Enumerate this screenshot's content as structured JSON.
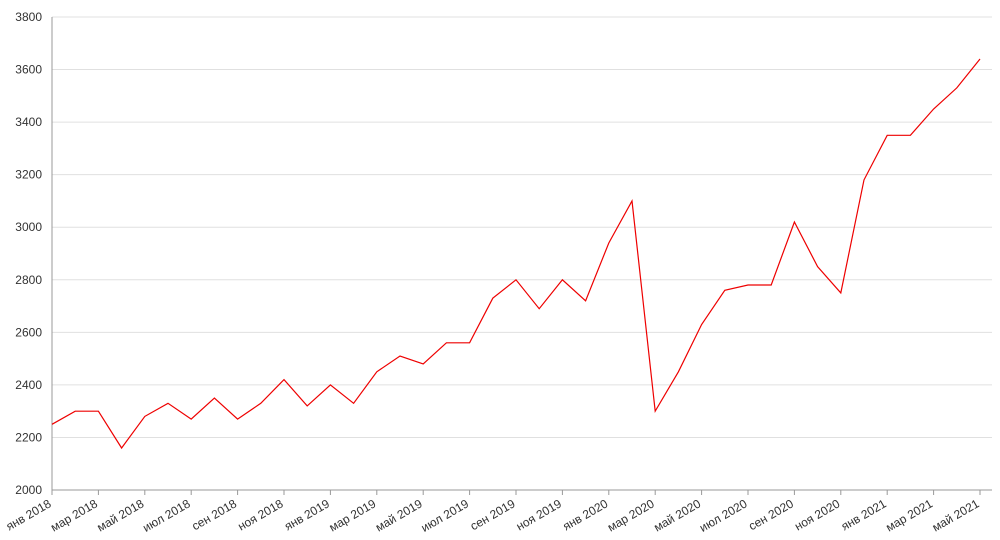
{
  "chart_data": {
    "type": "line",
    "x": [
      "2018-01",
      "2018-02",
      "2018-03",
      "2018-04",
      "2018-05",
      "2018-06",
      "2018-07",
      "2018-08",
      "2018-09",
      "2018-10",
      "2018-11",
      "2018-12",
      "2019-01",
      "2019-02",
      "2019-03",
      "2019-04",
      "2019-05",
      "2019-06",
      "2019-07",
      "2019-08",
      "2019-09",
      "2019-10",
      "2019-11",
      "2019-12",
      "2020-01",
      "2020-02",
      "2020-03",
      "2020-04",
      "2020-05",
      "2020-06",
      "2020-07",
      "2020-08",
      "2020-09",
      "2020-10",
      "2020-11",
      "2020-12",
      "2021-01",
      "2021-02",
      "2021-03",
      "2021-04",
      "2021-05"
    ],
    "series": [
      {
        "color": "#ee0000",
        "values": [
          2250,
          2300,
          2300,
          2160,
          2280,
          2330,
          2270,
          2350,
          2270,
          2330,
          2420,
          2320,
          2400,
          2330,
          2450,
          2510,
          2480,
          2560,
          2560,
          2730,
          2800,
          2690,
          2800,
          2720,
          2940,
          3100,
          2300,
          2450,
          2630,
          2760,
          2780,
          2780,
          3020,
          2850,
          2750,
          3180,
          3350,
          3350,
          3450,
          3530,
          3640
        ]
      }
    ],
    "ylim": [
      2000,
      3800
    ],
    "yticks": [
      2000,
      2200,
      2400,
      2600,
      2800,
      3000,
      3200,
      3400,
      3600,
      3800
    ],
    "xticks": [
      {
        "value": "2018-01",
        "label": "янв 2018"
      },
      {
        "value": "2018-03",
        "label": "мар 2018"
      },
      {
        "value": "2018-05",
        "label": "май 2018"
      },
      {
        "value": "2018-07",
        "label": "июл 2018"
      },
      {
        "value": "2018-09",
        "label": "сен 2018"
      },
      {
        "value": "2018-11",
        "label": "ноя 2018"
      },
      {
        "value": "2019-01",
        "label": "янв 2019"
      },
      {
        "value": "2019-03",
        "label": "мар 2019"
      },
      {
        "value": "2019-05",
        "label": "май 2019"
      },
      {
        "value": "2019-07",
        "label": "июл 2019"
      },
      {
        "value": "2019-09",
        "label": "сен 2019"
      },
      {
        "value": "2019-11",
        "label": "ноя 2019"
      },
      {
        "value": "2020-01",
        "label": "янв 2020"
      },
      {
        "value": "2020-03",
        "label": "мар 2020"
      },
      {
        "value": "2020-05",
        "label": "май 2020"
      },
      {
        "value": "2020-07",
        "label": "июл 2020"
      },
      {
        "value": "2020-09",
        "label": "сен 2020"
      },
      {
        "value": "2020-11",
        "label": "ноя 2020"
      },
      {
        "value": "2021-01",
        "label": "янв 2021"
      },
      {
        "value": "2021-03",
        "label": "мар 2021"
      },
      {
        "value": "2021-05",
        "label": "май 2021"
      }
    ],
    "grid": true
  }
}
